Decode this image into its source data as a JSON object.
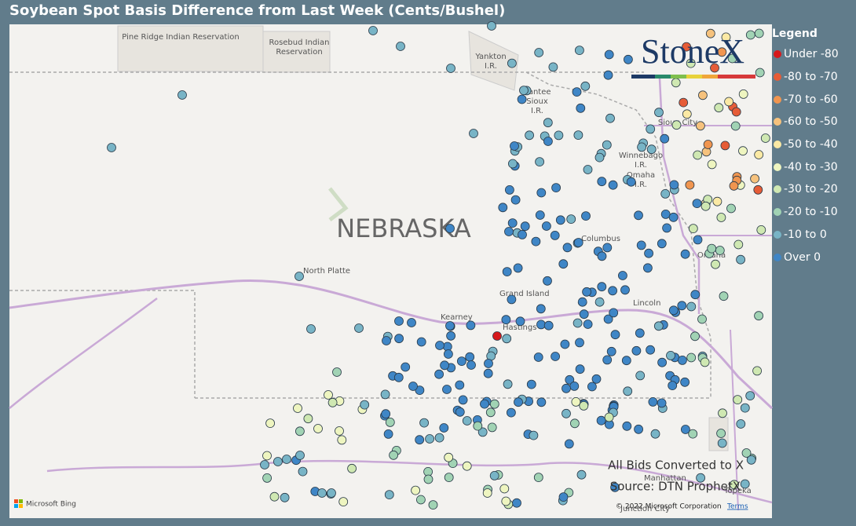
{
  "title": "Soybean Spot Basis Difference from Last Week (Cents/Bushel)",
  "logo": "StoneX",
  "legend": {
    "title": "Legend",
    "items": [
      {
        "label": "Under -80",
        "color": "#d7191c"
      },
      {
        "label": "-80 to -70",
        "color": "#e65c37"
      },
      {
        "label": "-70 to -60",
        "color": "#f0954f"
      },
      {
        "label": "-60 to -50",
        "color": "#f6c27d"
      },
      {
        "label": "-50 to -40",
        "color": "#fbe9a4"
      },
      {
        "label": "-40 to -30",
        "color": "#eef5c0"
      },
      {
        "label": "-30 to -20",
        "color": "#cfe8b2"
      },
      {
        "label": "-20 to -10",
        "color": "#a1d3b4"
      },
      {
        "label": "-10 to 0",
        "color": "#78b4c6"
      },
      {
        "label": "Over 0",
        "color": "#3f86c6"
      }
    ]
  },
  "map_labels": {
    "state": "NEBRASKA",
    "places": [
      "Pine Ridge Indian Reservation",
      "Rosebud Indian",
      "Reservation",
      "Yankton",
      "I.R.",
      "Santee",
      "Sioux",
      "I.R.",
      "Sioux City",
      "Winnebago",
      "I.R.",
      "Omaha",
      "I.R.",
      "Columbus",
      "Omaha",
      "North Platte",
      "Grand Island",
      "Kearney",
      "Hastings",
      "Lincoln",
      "Manhattan",
      "Topeka",
      "Junction City"
    ]
  },
  "notes": [
    "All Bids Converted to X",
    "Source: DTN ProphetX"
  ],
  "attribution": {
    "bing": "Microsoft Bing",
    "copyright": "© 2022 Microsoft Corporation",
    "terms": "Terms"
  }
}
